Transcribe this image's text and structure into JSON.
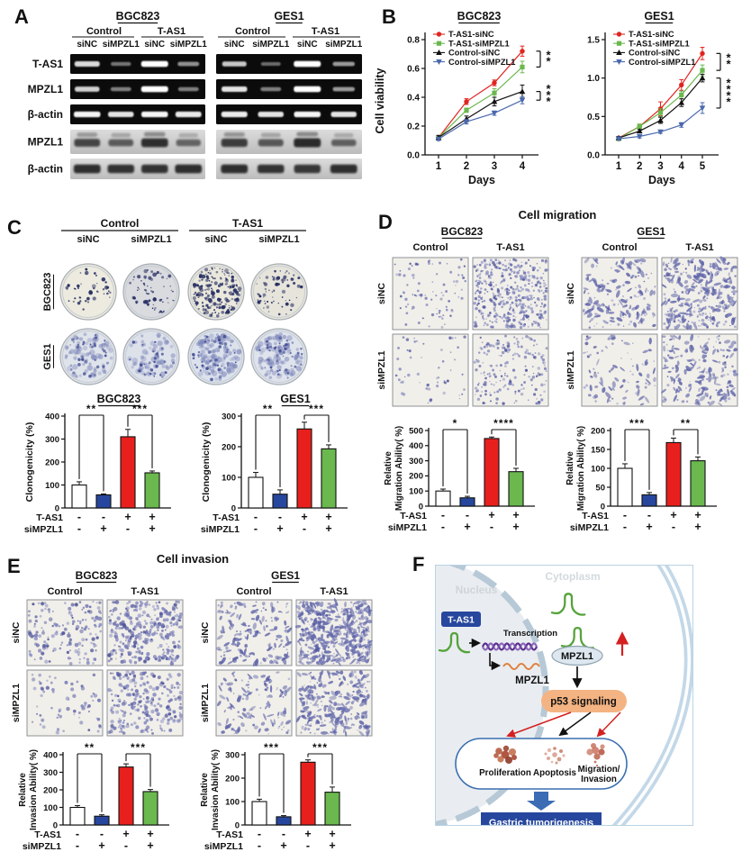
{
  "colors": {
    "bar_white": "#ffffff",
    "bar_blue": "#27479e",
    "bar_red": "#e8201d",
    "bar_green": "#6ab84e",
    "line_red": "#e02420",
    "line_green": "#6ab84e",
    "line_black": "#111111",
    "line_blue": "#4a69ad",
    "badge_blue": "#27479e",
    "p53_fill": "#f4b382",
    "membrane_blue": "#c3d8e8",
    "rna_green": "#55a33b",
    "dna_purple": "#5b2d8e",
    "mrna_orange": "#e0803c",
    "outcome_box_blue": "#27479e",
    "capsule_border": "#3a6fb0",
    "block_arrow_blue": "#3b6cb4"
  },
  "panelA": {
    "label": "A",
    "row_labels": [
      "T-AS1",
      "MPZL1",
      "β-actin",
      "MPZL1",
      "β-actin"
    ],
    "strip_types": [
      "gel",
      "gel",
      "gel",
      "wb",
      "wb"
    ],
    "groups": [
      {
        "cell_line": "BGC823",
        "conditions": [
          "Control",
          "T-AS1"
        ],
        "lanes": [
          "siNC",
          "siMPZL1",
          "siNC",
          "siMPZL1"
        ],
        "band_intensities": [
          [
            0.8,
            0.25,
            1.0,
            0.4
          ],
          [
            0.75,
            0.3,
            1.0,
            0.3
          ],
          [
            0.95,
            0.85,
            0.95,
            0.88
          ],
          [
            0.7,
            0.45,
            0.95,
            0.35
          ],
          [
            0.95,
            0.9,
            0.9,
            0.95
          ]
        ]
      },
      {
        "cell_line": "GES1",
        "conditions": [
          "Control",
          "T-AS1"
        ],
        "lanes": [
          "siNC",
          "siMPZL1",
          "siNC",
          "siMPZL1"
        ],
        "band_intensities": [
          [
            0.7,
            0.2,
            1.0,
            0.45
          ],
          [
            0.85,
            0.3,
            1.0,
            0.45
          ],
          [
            0.9,
            0.85,
            0.95,
            0.85
          ],
          [
            0.8,
            0.5,
            1.0,
            0.4
          ],
          [
            0.95,
            0.9,
            0.85,
            0.95
          ]
        ]
      }
    ]
  },
  "panelB": {
    "label": "B",
    "ylabel": "Cell viability"
  },
  "panelC": {
    "label": "C",
    "conditions": [
      "Control",
      "T-AS1"
    ],
    "lanes": [
      "siNC",
      "siMPZL1",
      "siNC",
      "siMPZL1"
    ],
    "rows": [
      {
        "cell_line": "BGC823",
        "style": "sparse",
        "colony_densities": [
          45,
          65,
          190,
          70
        ],
        "dish_fills": [
          "#edebdf",
          "#d9dbdf",
          "#eae8dc",
          "#e7e5db"
        ]
      },
      {
        "cell_line": "GES1",
        "style": "hazy",
        "colony_densities": [
          70,
          60,
          100,
          85
        ],
        "dish_fills": [
          "#dfe3ea",
          "#dde1ea",
          "#dce2ec",
          "#dee3ec"
        ]
      }
    ]
  },
  "panelD": {
    "label": "D",
    "title": "Cell migration",
    "groups": [
      {
        "cell_line": "BGC823",
        "cols": [
          "Control",
          "T-AS1"
        ],
        "rows": [
          "siNC",
          "siMPZL1"
        ],
        "style": "fine",
        "cell_densities": [
          [
            90,
            430
          ],
          [
            55,
            190
          ]
        ]
      },
      {
        "cell_line": "GES1",
        "cols": [
          "Control",
          "T-AS1"
        ],
        "rows": [
          "siNC",
          "siMPZL1"
        ],
        "style": "coarse",
        "cell_densities": [
          [
            150,
            260
          ],
          [
            80,
            170
          ]
        ]
      }
    ]
  },
  "panelE": {
    "label": "E",
    "title": "Cell invasion",
    "groups": [
      {
        "cell_line": "BGC823",
        "cols": [
          "Control",
          "T-AS1"
        ],
        "rows": [
          "siNC",
          "siMPZL1"
        ],
        "style": "med",
        "cell_densities": [
          [
            160,
            320
          ],
          [
            70,
            230
          ]
        ]
      },
      {
        "cell_line": "GES1",
        "cols": [
          "Control",
          "T-AS1"
        ],
        "rows": [
          "siNC",
          "siMPZL1"
        ],
        "style": "coarse",
        "cell_densities": [
          [
            150,
            420
          ],
          [
            110,
            230
          ]
        ]
      }
    ]
  },
  "panelF": {
    "label": "F",
    "labels": {
      "cytoplasm": "Cytoplasm",
      "nucleus": "Nucleus",
      "tas1": "T-AS1",
      "transcription": "Transcription",
      "mpzl1_nuc": "MPZL1",
      "mpzl1_cyt": "MPZL1",
      "p53": "p53 signaling",
      "proliferation": "Proliferation",
      "apoptosis": "Apoptosis",
      "migration_line1": "Migration/",
      "migration_line2": "Invasion",
      "outcome": "Gastric tumorigenesis"
    }
  },
  "chart_data": [
    {
      "id": "B1",
      "panel": "B",
      "type": "line",
      "title": "BGC823",
      "xlabel": "Days",
      "ylabel": "Cell viability",
      "x": [
        1,
        2,
        3,
        4
      ],
      "ylim": [
        0,
        0.8
      ],
      "yticks": [
        0.0,
        0.2,
        0.4,
        0.6,
        0.8
      ],
      "legend_position": "top-left",
      "grid": false,
      "series": [
        {
          "name": "T-AS1-siNC",
          "color": "#e02420",
          "marker": "circle",
          "values": [
            0.12,
            0.37,
            0.5,
            0.72
          ],
          "err": [
            0.015,
            0.02,
            0.02,
            0.035
          ]
        },
        {
          "name": "T-AS1-siMPZL1",
          "color": "#6ab84e",
          "marker": "square",
          "values": [
            0.12,
            0.31,
            0.43,
            0.61
          ],
          "err": [
            0.015,
            0.015,
            0.03,
            0.04
          ]
        },
        {
          "name": "Control-siNC",
          "color": "#111111",
          "marker": "triangle-up",
          "values": [
            0.12,
            0.25,
            0.37,
            0.44
          ],
          "err": [
            0.015,
            0.02,
            0.03,
            0.045
          ]
        },
        {
          "name": "Control-siMPZL1",
          "color": "#4a69ad",
          "marker": "triangle-down",
          "values": [
            0.11,
            0.23,
            0.29,
            0.38
          ],
          "err": [
            0.01,
            0.015,
            0.015,
            0.025
          ]
        }
      ],
      "sig_brackets": [
        {
          "s": [
            0,
            1
          ],
          "stars": "**"
        },
        {
          "s": [
            2,
            3
          ],
          "stars": "***"
        }
      ]
    },
    {
      "id": "B2",
      "panel": "B",
      "type": "line",
      "title": "GES1",
      "xlabel": "Days",
      "ylabel": "Cell viability",
      "x": [
        1,
        2,
        3,
        4,
        5
      ],
      "ylim": [
        0,
        1.5
      ],
      "yticks": [
        0.0,
        0.5,
        1.0,
        1.5
      ],
      "legend_position": "top-left",
      "grid": false,
      "series": [
        {
          "name": "T-AS1-siNC",
          "color": "#e02420",
          "marker": "circle",
          "values": [
            0.22,
            0.37,
            0.6,
            0.91,
            1.32
          ],
          "err": [
            0.02,
            0.03,
            0.09,
            0.07,
            0.08
          ]
        },
        {
          "name": "T-AS1-siMPZL1",
          "color": "#6ab84e",
          "marker": "square",
          "values": [
            0.21,
            0.37,
            0.55,
            0.78,
            1.1
          ],
          "err": [
            0.02,
            0.03,
            0.05,
            0.05,
            0.07
          ]
        },
        {
          "name": "Control-siNC",
          "color": "#111111",
          "marker": "triangle-up",
          "values": [
            0.22,
            0.31,
            0.45,
            0.68,
            1.0
          ],
          "err": [
            0.02,
            0.02,
            0.04,
            0.05,
            0.05
          ]
        },
        {
          "name": "Control-siMPZL1",
          "color": "#4a69ad",
          "marker": "triangle-down",
          "values": [
            0.21,
            0.24,
            0.3,
            0.39,
            0.61
          ],
          "err": [
            0.015,
            0.02,
            0.02,
            0.03,
            0.07
          ]
        }
      ],
      "sig_brackets": [
        {
          "s": [
            0,
            1
          ],
          "stars": "**"
        },
        {
          "s": [
            2,
            3
          ],
          "stars": "****"
        }
      ]
    },
    {
      "id": "C1",
      "panel": "C",
      "type": "bar",
      "title": "BGC823",
      "ylabel": "Clonogenicity (%)",
      "ylim": [
        0,
        400
      ],
      "yticks": [
        0,
        100,
        200,
        300,
        400
      ],
      "values": [
        100,
        57,
        310,
        153
      ],
      "errors": [
        14,
        4,
        32,
        8
      ],
      "bar_colors": [
        "#ffffff",
        "#27479e",
        "#e8201d",
        "#6ab84e"
      ],
      "sig_brackets": [
        {
          "bars": [
            0,
            1
          ],
          "stars": "**"
        },
        {
          "bars": [
            2,
            3
          ],
          "stars": "***"
        }
      ],
      "x_matrix": [
        {
          "label": "T-AS1",
          "signs": [
            "-",
            "-",
            "+",
            "+"
          ]
        },
        {
          "label": "siMPZL1",
          "signs": [
            "-",
            "+",
            "-",
            "+"
          ]
        }
      ]
    },
    {
      "id": "C2",
      "panel": "C",
      "type": "bar",
      "title": "GES1",
      "ylabel": "Clonogenicity (%)",
      "ylim": [
        0,
        300
      ],
      "yticks": [
        0,
        100,
        200,
        300
      ],
      "values": [
        100,
        45,
        258,
        193
      ],
      "errors": [
        16,
        14,
        22,
        13
      ],
      "bar_colors": [
        "#ffffff",
        "#27479e",
        "#e8201d",
        "#6ab84e"
      ],
      "sig_brackets": [
        {
          "bars": [
            0,
            1
          ],
          "stars": "**"
        },
        {
          "bars": [
            2,
            3
          ],
          "stars": "***"
        }
      ],
      "x_matrix": [
        {
          "label": "T-AS1",
          "signs": [
            "-",
            "-",
            "+",
            "+"
          ]
        },
        {
          "label": "siMPZL1",
          "signs": [
            "-",
            "+",
            "-",
            "+"
          ]
        }
      ]
    },
    {
      "id": "D1",
      "panel": "D",
      "type": "bar",
      "title": "",
      "ylabel_lines": [
        "Relative",
        "Migration Ability( %)"
      ],
      "ylim": [
        0,
        500
      ],
      "yticks": [
        0,
        100,
        200,
        300,
        400,
        500
      ],
      "values": [
        100,
        55,
        447,
        228
      ],
      "errors": [
        13,
        10,
        10,
        22
      ],
      "bar_colors": [
        "#ffffff",
        "#27479e",
        "#e8201d",
        "#6ab84e"
      ],
      "sig_brackets": [
        {
          "bars": [
            0,
            1
          ],
          "stars": "*"
        },
        {
          "bars": [
            2,
            3
          ],
          "stars": "****"
        }
      ],
      "x_matrix": [
        {
          "label": "T-AS1",
          "signs": [
            "-",
            "-",
            "+",
            "+"
          ]
        },
        {
          "label": "siMPZL1",
          "signs": [
            "-",
            "+",
            "-",
            "+"
          ]
        }
      ]
    },
    {
      "id": "D2",
      "panel": "D",
      "type": "bar",
      "title": "",
      "ylabel_lines": [
        "Relative",
        "Migration Ability( %)"
      ],
      "ylim": [
        0,
        200
      ],
      "yticks": [
        0,
        50,
        100,
        150,
        200
      ],
      "values": [
        100,
        30,
        168,
        120
      ],
      "errors": [
        12,
        6,
        12,
        10
      ],
      "bar_colors": [
        "#ffffff",
        "#27479e",
        "#e8201d",
        "#6ab84e"
      ],
      "sig_brackets": [
        {
          "bars": [
            0,
            1
          ],
          "stars": "***"
        },
        {
          "bars": [
            2,
            3
          ],
          "stars": "**"
        }
      ],
      "x_matrix": [
        {
          "label": "T-AS1",
          "signs": [
            "-",
            "-",
            "+",
            "+"
          ]
        },
        {
          "label": "siMPZL1",
          "signs": [
            "-",
            "+",
            "-",
            "+"
          ]
        }
      ]
    },
    {
      "id": "E1",
      "panel": "E",
      "type": "bar",
      "title": "",
      "ylabel_lines": [
        "Relative",
        "Invasion Ability( %)"
      ],
      "ylim": [
        0,
        400
      ],
      "yticks": [
        0,
        100,
        200,
        300,
        400
      ],
      "values": [
        100,
        50,
        330,
        190
      ],
      "errors": [
        10,
        8,
        18,
        12
      ],
      "bar_colors": [
        "#ffffff",
        "#27479e",
        "#e8201d",
        "#6ab84e"
      ],
      "sig_brackets": [
        {
          "bars": [
            0,
            1
          ],
          "stars": "**"
        },
        {
          "bars": [
            2,
            3
          ],
          "stars": "***"
        }
      ],
      "x_matrix": [
        {
          "label": "T-AS1",
          "signs": [
            "-",
            "-",
            "+",
            "+"
          ]
        },
        {
          "label": "siMPZL1",
          "signs": [
            "-",
            "+",
            "-",
            "+"
          ]
        }
      ]
    },
    {
      "id": "E2",
      "panel": "E",
      "type": "bar",
      "title": "",
      "ylabel_lines": [
        "Relative",
        "Invasion Ability( %)"
      ],
      "ylim": [
        0,
        300
      ],
      "yticks": [
        0,
        100,
        200,
        300
      ],
      "values": [
        100,
        35,
        268,
        140
      ],
      "errors": [
        10,
        5,
        10,
        22
      ],
      "bar_colors": [
        "#ffffff",
        "#27479e",
        "#e8201d",
        "#6ab84e"
      ],
      "sig_brackets": [
        {
          "bars": [
            0,
            1
          ],
          "stars": "***"
        },
        {
          "bars": [
            2,
            3
          ],
          "stars": "***"
        }
      ],
      "x_matrix": [
        {
          "label": "T-AS1",
          "signs": [
            "-",
            "-",
            "+",
            "+"
          ]
        },
        {
          "label": "siMPZL1",
          "signs": [
            "-",
            "+",
            "-",
            "+"
          ]
        }
      ]
    }
  ]
}
